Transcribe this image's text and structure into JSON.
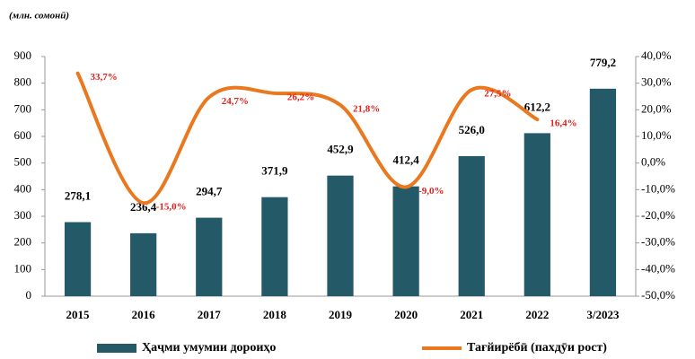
{
  "chart_data": {
    "type": "bar_line",
    "title": "(млн. сомонӣ)",
    "categories": [
      "2015",
      "2016",
      "2017",
      "2018",
      "2019",
      "2020",
      "2021",
      "2022",
      "3/2023"
    ],
    "series": [
      {
        "name": "Ҳаҷми умумии дороиҳо",
        "type": "bar",
        "color": "#245a67",
        "values": [
          278.1,
          236.4,
          294.7,
          371.9,
          452.9,
          412.4,
          526.0,
          612.2,
          779.2
        ],
        "value_labels": [
          "278,1",
          "236,4",
          "294,7",
          "371,9",
          "452,9",
          "412,4",
          "526,0",
          "612,2",
          "779,2"
        ]
      },
      {
        "name": "Тағйирёбӣ (пахдӯи рост)",
        "type": "line",
        "axis": "y2",
        "color": "#e9781e",
        "label_color": "#e0201b",
        "values": [
          33.7,
          -15.0,
          24.7,
          26.2,
          21.8,
          -9.0,
          27.5,
          16.4,
          null
        ],
        "value_labels": [
          "33,7%",
          "-15,0%",
          "24,7%",
          "26,2%",
          "21,8%",
          "-9,0%",
          "27,5%",
          "16,4%",
          null
        ]
      }
    ],
    "ylim": [
      0,
      900
    ],
    "yticks": [
      0,
      100,
      200,
      300,
      400,
      500,
      600,
      700,
      800,
      900
    ],
    "y2lim": [
      -50,
      40
    ],
    "y2ticks": [
      {
        "value": -50,
        "label": "-50,0%"
      },
      {
        "value": -40,
        "label": "-40,0%"
      },
      {
        "value": -30,
        "label": "-30,0%"
      },
      {
        "value": -20,
        "label": "-20,0%"
      },
      {
        "value": -10,
        "label": "-10,0%"
      },
      {
        "value": 0,
        "label": "0,0%"
      },
      {
        "value": 10,
        "label": "10,0%"
      },
      {
        "value": 20,
        "label": "20,0%"
      },
      {
        "value": 30,
        "label": "30,0%"
      },
      {
        "value": 40,
        "label": "40,0%"
      }
    ],
    "grid": false,
    "legend": "bottom"
  }
}
